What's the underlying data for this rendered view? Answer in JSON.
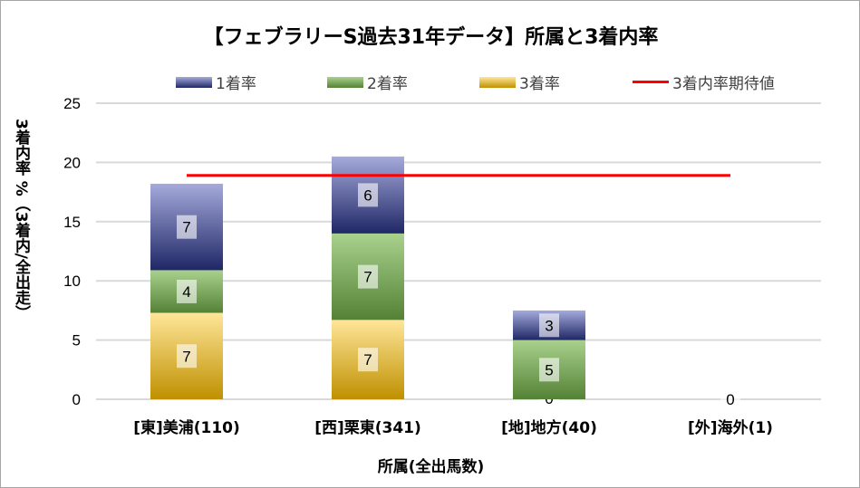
{
  "chart_data": {
    "type": "bar",
    "stacked": true,
    "title": "【フェブラリーS過去31年データ】所属と3着内率",
    "xlabel": "所属(全出馬数)",
    "ylabel": "3着内率 %（3着内/全出走）",
    "ylim": [
      0,
      25
    ],
    "yticks": [
      "0",
      "5",
      "10",
      "15",
      "20",
      "25"
    ],
    "grid": true,
    "legend_position": "top",
    "categories": [
      "[東]美浦(110)",
      "[西]栗東(341)",
      "[地]地方(40)",
      "[外]海外(1)"
    ],
    "series": [
      {
        "name": "3着率",
        "values": [
          7.3,
          6.7,
          0,
          0
        ],
        "labels": [
          "7",
          "7",
          "0",
          ""
        ],
        "color_top": "#ffe699",
        "color_bottom": "#bf9000"
      },
      {
        "name": "2着率",
        "values": [
          3.6,
          7.3,
          5.0,
          0
        ],
        "labels": [
          "4",
          "7",
          "5",
          ""
        ],
        "color_top": "#a9d18e",
        "color_bottom": "#548235"
      },
      {
        "name": "1着率",
        "values": [
          7.3,
          6.5,
          2.5,
          0
        ],
        "labels": [
          "7",
          "6",
          "3",
          "0"
        ],
        "color_top": "#a5aadb",
        "color_bottom": "#1f2766"
      }
    ],
    "reference_line": {
      "name": "3着内率期待値",
      "value": 18.9,
      "color": "#ff0000"
    }
  }
}
